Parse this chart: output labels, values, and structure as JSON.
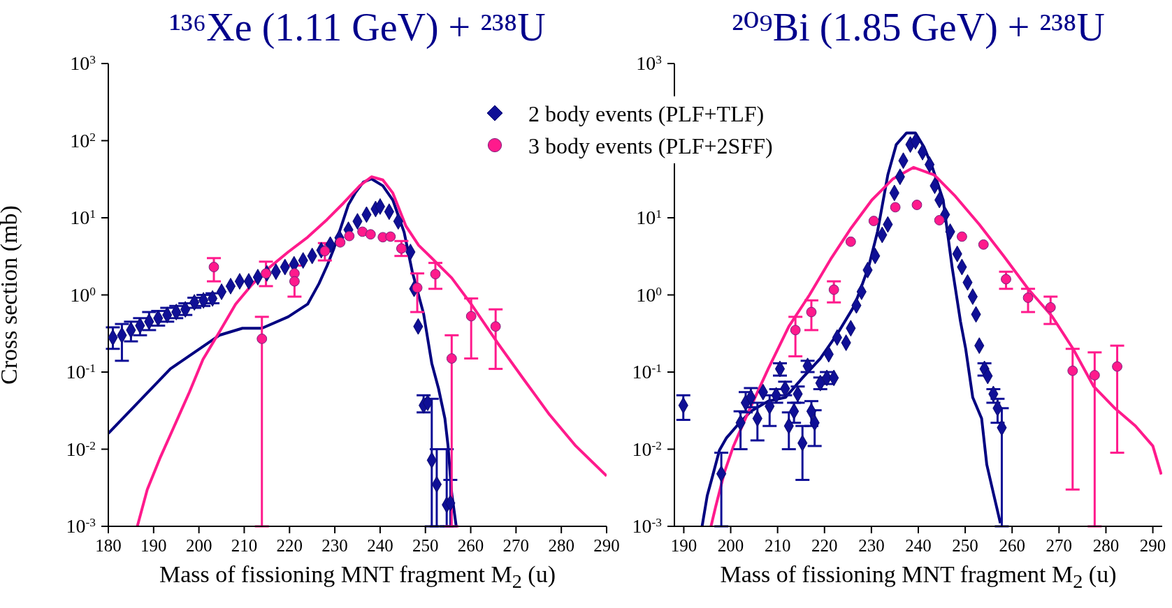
{
  "chart_data": [
    {
      "type": "scatter",
      "title": "¹³⁶Xe (1.11 GeV) + ²³⁸U",
      "xlabel": "Mass of fissioning MNT fragment M$_{2}$ (u)",
      "ylabel": "Cross section (mb)",
      "log": "y",
      "legend": "top right",
      "xlim": [
        180,
        290
      ],
      "xticks": [
        180,
        190,
        200,
        210,
        220,
        230,
        240,
        250,
        260,
        270,
        280,
        290
      ],
      "ylim": [
        0.001,
        1000
      ],
      "yticks": [
        {
          "value": 0.001,
          "label": "10$^{-3}$"
        },
        {
          "value": 0.01,
          "label": "10$^{-2}$"
        },
        {
          "value": 0.1,
          "label": "10$^{-1}$"
        },
        {
          "value": 1,
          "label": "10$^{0}$"
        },
        {
          "value": 10,
          "label": "10$^{1}$"
        },
        {
          "value": 100,
          "label": "10$^{2}$"
        },
        {
          "value": 1000,
          "label": "10$^{3}$"
        }
      ],
      "series": [
        {
          "type": "line",
          "color": "#000080",
          "marker": "none",
          "x": [
            180,
            193.7,
            204.5,
            209.6,
            213.9,
            219.7,
            224,
            226.5,
            228.3,
            229.8,
            233,
            234.5,
            236.3,
            238.1,
            240.6,
            242.8,
            245.3,
            247.1,
            249.6,
            251.4,
            252.9,
            254.3,
            255,
            255.8,
            256.8
          ],
          "values": [
            0.016,
            0.11,
            0.3,
            0.37,
            0.37,
            0.52,
            0.76,
            1.4,
            2.4,
            4,
            14.8,
            21,
            29,
            32,
            26,
            17,
            6.5,
            2,
            0.57,
            0.13,
            0.061,
            0.025,
            0.011,
            0.0027,
            0.001
          ]
        },
        {
          "type": "line",
          "color": "#ff1a8c",
          "marker": "none",
          "x": [
            186.4,
            188.6,
            191.5,
            194.4,
            197.9,
            200.9,
            204.5,
            208.1,
            211.7,
            215.3,
            219.7,
            224,
            228.3,
            231.9,
            235.5,
            238.1,
            240.6,
            242.8,
            245.7,
            248.5,
            251.4,
            255.8,
            260.1,
            265.9,
            271.6,
            277.4,
            283.2,
            290
          ],
          "values": [
            0.001,
            0.003,
            0.0079,
            0.019,
            0.055,
            0.146,
            0.33,
            0.76,
            1.36,
            2.2,
            3.6,
            5.6,
            9.5,
            15.5,
            26,
            34,
            31,
            21,
            7.8,
            4.4,
            3,
            1.66,
            0.76,
            0.24,
            0.082,
            0.028,
            0.011,
            0.0045
          ]
        },
        {
          "name": "2 body events (PLF+TLF)",
          "color": "#0f0f96",
          "marker": "diamond",
          "x": [
            181,
            183,
            185,
            187,
            189,
            191,
            193,
            195,
            197,
            199,
            201,
            203,
            205,
            207,
            209,
            211,
            213,
            215,
            217,
            219,
            221,
            223,
            225,
            227,
            229,
            231,
            233,
            235,
            237,
            239,
            240,
            242,
            244,
            246.7,
            247.5,
            248.4,
            249.6,
            250.5,
            251.4,
            252.5,
            254.7,
            255.5
          ],
          "values": [
            0.28,
            0.3,
            0.35,
            0.4,
            0.45,
            0.5,
            0.55,
            0.6,
            0.65,
            0.8,
            0.85,
            0.9,
            1.1,
            1.3,
            1.5,
            1.5,
            1.7,
            1.9,
            2,
            2.3,
            2.5,
            2.8,
            3.2,
            3.8,
            4.5,
            5.5,
            7,
            9,
            11,
            13,
            14,
            12,
            9,
            3.6,
            1.2,
            0.39,
            0.037,
            0.04,
            0.0072,
            0.0035,
            0.0019,
            0.002
          ],
          "errors": [
            [
              0.2,
              0.38
            ],
            [
              0.14,
              0.42
            ],
            [
              0.25,
              0.45
            ],
            [
              0.3,
              0.5
            ],
            [
              0.35,
              0.6
            ],
            [
              0.4,
              0.62
            ],
            [
              0.45,
              0.68
            ],
            [
              0.5,
              0.72
            ],
            [
              0.55,
              0.78
            ],
            [
              0.68,
              0.92
            ],
            [
              0.72,
              1
            ],
            [
              0.78,
              1.05
            ],
            null,
            null,
            null,
            null,
            null,
            null,
            null,
            null,
            null,
            null,
            null,
            null,
            null,
            null,
            null,
            null,
            null,
            null,
            null,
            null,
            null,
            null,
            null,
            null,
            [
              0.03,
              0.05
            ],
            null,
            [
              0.001,
              0.045
            ],
            [
              0.001,
              0.01
            ],
            [
              0.001,
              0.01
            ],
            [
              0.001,
              0.004
            ]
          ]
        },
        {
          "name": "3 body events (PLF+2SFF)",
          "color": "#ff1a8c",
          "marker": "circle",
          "x": [
            203.3,
            213.9,
            214.8,
            221.1,
            221.1,
            227.8,
            231.2,
            233.2,
            236.1,
            237.9,
            240.6,
            242.3,
            244.7,
            248.2,
            252.2,
            255.8,
            260.1,
            265.5
          ],
          "values": [
            2.3,
            0.27,
            1.9,
            1.9,
            1.5,
            3.7,
            4.8,
            5.8,
            6.6,
            6.1,
            5.6,
            5.7,
            4,
            1.24,
            1.86,
            0.15,
            0.53,
            0.39
          ],
          "errors": [
            [
              1.5,
              3
            ],
            [
              0.001,
              0.52
            ],
            [
              1.3,
              2.7
            ],
            [
              0.95,
              2.4
            ],
            null,
            [
              2.8,
              4.7
            ],
            null,
            null,
            null,
            null,
            null,
            null,
            [
              3.2,
              5
            ],
            [
              0.6,
              1.9
            ],
            [
              1.2,
              2.6
            ],
            [
              0.001,
              0.3
            ],
            [
              0.15,
              0.9
            ],
            [
              0.11,
              0.65
            ]
          ]
        }
      ]
    },
    {
      "type": "scatter",
      "title": "²⁰⁹Bi (1.85 GeV) + ²³⁸U",
      "xlabel": "Mass of fissioning MNT fragment M$_{2}$ (u)",
      "log": "y",
      "xlim": [
        188,
        292
      ],
      "xticks": [
        190,
        200,
        210,
        220,
        230,
        240,
        250,
        260,
        270,
        280,
        290
      ],
      "ylim": [
        0.001,
        1000
      ],
      "yticks": [
        {
          "value": 0.001,
          "label": "10$^{-3}$"
        },
        {
          "value": 0.01,
          "label": "10$^{-2}$"
        },
        {
          "value": 0.1,
          "label": "10$^{-1}$"
        },
        {
          "value": 1,
          "label": "10$^{0}$"
        },
        {
          "value": 10,
          "label": "10$^{1}$"
        },
        {
          "value": 100,
          "label": null
        },
        {
          "value": 1000,
          "label": "10$^{3}$"
        }
      ],
      "series": [
        {
          "type": "line",
          "color": "#000080",
          "marker": "none",
          "x": [
            193.9,
            195,
            196.1,
            197.6,
            199.1,
            201.3,
            204.3,
            208,
            211.7,
            215.3,
            219.1,
            222.7,
            226.4,
            229.4,
            231.3,
            233.5,
            235.3,
            237.5,
            239.4,
            241.2,
            243,
            245.3,
            247.2,
            249,
            250.1,
            251.6,
            253.5,
            254.6,
            256,
            257.5
          ],
          "values": [
            0.001,
            0.0025,
            0.0044,
            0.0097,
            0.014,
            0.02,
            0.031,
            0.042,
            0.047,
            0.084,
            0.15,
            0.31,
            0.73,
            2.3,
            6.6,
            36,
            89,
            126,
            126,
            83,
            45,
            17,
            2.3,
            0.45,
            0.2,
            0.047,
            0.025,
            0.0063,
            0.0027,
            0.0011
          ]
        },
        {
          "type": "line",
          "color": "#ff1a8c",
          "marker": "none",
          "x": [
            195.8,
            196.8,
            198.7,
            200.6,
            203.5,
            208,
            212.4,
            216.8,
            221.3,
            225.7,
            230.1,
            234.6,
            239,
            243.4,
            247.9,
            253,
            258.2,
            263.4,
            268.5,
            273,
            277.4,
            281.9,
            286.3,
            290,
            291.8
          ],
          "values": [
            0.001,
            0.0018,
            0.0051,
            0.011,
            0.028,
            0.11,
            0.39,
            1,
            2.9,
            7.4,
            17,
            32,
            45,
            36,
            19,
            8.2,
            3.2,
            1.2,
            0.53,
            0.2,
            0.065,
            0.034,
            0.02,
            0.011,
            0.0047
          ]
        },
        {
          "color": "#0f0f96",
          "marker": "diamond",
          "x": [
            189.9,
            198,
            202.1,
            203.2,
            204.3,
            205.7,
            206.9,
            208.3,
            209.7,
            210.5,
            211.6,
            212.4,
            213.5,
            214.3,
            215.3,
            216.4,
            217.2,
            217.9,
            219.1,
            220.5,
            220.9,
            222,
            222.7,
            224.6,
            225.6,
            226.8,
            227.9,
            229.2,
            230.8,
            232.3,
            233.5,
            234.9,
            236.1,
            236.8,
            238.3,
            239.4,
            240.9,
            242.4,
            243.5,
            244.5,
            245.7,
            246.8,
            248.3,
            249.3,
            250.5,
            251.6,
            252.3,
            253,
            254.1,
            254.8,
            256,
            256.9,
            257.8
          ],
          "values": [
            0.037,
            0.0048,
            0.022,
            0.04,
            0.047,
            0.025,
            0.055,
            0.036,
            0.05,
            0.11,
            0.061,
            0.02,
            0.031,
            0.052,
            0.012,
            0.12,
            0.031,
            0.022,
            0.072,
            0.084,
            0.17,
            0.084,
            0.28,
            0.24,
            0.37,
            0.73,
            1.1,
            2.1,
            3.2,
            6,
            8.2,
            21,
            34,
            55,
            89,
            98,
            71,
            49,
            26,
            17,
            11,
            6.6,
            3.4,
            2.3,
            1.45,
            0.95,
            0.56,
            0.22,
            0.11,
            0.089,
            0.052,
            0.034,
            0.019
          ],
          "errors": [
            [
              0.024,
              0.05
            ],
            [
              0.001,
              0.009
            ],
            [
              0.01,
              0.031
            ],
            [
              0.03,
              0.055
            ],
            [
              0.035,
              0.062
            ],
            [
              0.013,
              0.04
            ],
            null,
            [
              0.02,
              0.05
            ],
            [
              0.04,
              0.06
            ],
            [
              0.09,
              0.13
            ],
            [
              0.05,
              0.075
            ],
            [
              0.01,
              0.03
            ],
            [
              0.022,
              0.04
            ],
            [
              0.04,
              0.065
            ],
            [
              0.004,
              0.02
            ],
            [
              0.1,
              0.14
            ],
            [
              0.02,
              0.042
            ],
            [
              0.011,
              0.032
            ],
            [
              0.06,
              0.085
            ],
            [
              0.07,
              0.1
            ],
            null,
            null,
            null,
            null,
            null,
            null,
            null,
            null,
            null,
            null,
            null,
            null,
            null,
            null,
            null,
            null,
            null,
            null,
            null,
            null,
            null,
            null,
            null,
            null,
            null,
            null,
            null,
            null,
            [
              0.09,
              0.13
            ],
            null,
            [
              0.04,
              0.06
            ],
            [
              0.022,
              0.045
            ],
            [
              0.001,
              0.034
            ]
          ]
        },
        {
          "color": "#ff1a8c",
          "marker": "circle",
          "x": [
            213.8,
            217.2,
            222,
            225.6,
            230.5,
            235.1,
            239.7,
            244.5,
            249.3,
            253.9,
            258.7,
            263.4,
            268.2,
            272.9,
            277.6,
            282.4
          ],
          "values": [
            0.35,
            0.6,
            1.17,
            4.9,
            9.1,
            13.7,
            14.7,
            9.3,
            5.7,
            4.5,
            1.6,
            0.92,
            0.69,
            0.104,
            0.091,
            0.118
          ],
          "errors": [
            [
              0.16,
              0.52
            ],
            [
              0.35,
              0.85
            ],
            [
              0.8,
              1.5
            ],
            null,
            null,
            null,
            null,
            null,
            null,
            null,
            [
              1.2,
              2
            ],
            [
              0.6,
              1.2
            ],
            [
              0.42,
              0.95
            ],
            [
              0.003,
              0.2
            ],
            [
              0.001,
              0.18
            ],
            [
              0.009,
              0.22
            ]
          ]
        }
      ]
    }
  ]
}
